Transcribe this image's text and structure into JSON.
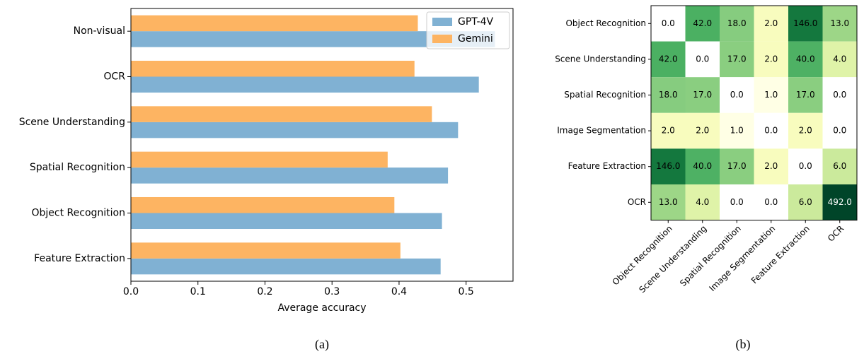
{
  "chart_data": [
    {
      "type": "barh",
      "categories": [
        "Non-visual",
        "OCR",
        "Scene Understanding",
        "Spatial Recognition",
        "Object Recognition",
        "Feature Extraction"
      ],
      "series": [
        {
          "name": "GPT-4V",
          "color": "#80b1d3",
          "values": [
            0.543,
            0.519,
            0.488,
            0.473,
            0.464,
            0.462
          ]
        },
        {
          "name": "Gemini",
          "color": "#fdb462",
          "values": [
            0.428,
            0.423,
            0.449,
            0.383,
            0.393,
            0.402
          ]
        }
      ],
      "x_label": "Average accuracy",
      "xlim": [
        0,
        0.57
      ],
      "xticks": [
        {
          "value": 0,
          "label": "0.0"
        },
        0.1,
        0.2,
        0.3,
        0.4,
        0.5
      ],
      "legend": "upper right",
      "caption": "(a)"
    },
    {
      "type": "heatmap",
      "y_categories": [
        "Object Recognition",
        "Scene Understanding",
        "Spatial Recognition",
        "Image Segmentation",
        "Feature Extraction",
        "OCR"
      ],
      "x_categories": [
        "Object Recognition",
        "Scene Understanding",
        "Spatial Recognition",
        "Image Segmentation",
        "Feature Extraction",
        "OCR"
      ],
      "values": [
        [
          0,
          42,
          18,
          2,
          146,
          13
        ],
        [
          42,
          0,
          17,
          2,
          40,
          4
        ],
        [
          18,
          17,
          0,
          1,
          17,
          0
        ],
        [
          2,
          2,
          1,
          0,
          2,
          0
        ],
        [
          146,
          40,
          17,
          2,
          0,
          6
        ],
        [
          13,
          4,
          0,
          0,
          6,
          492
        ]
      ],
      "value_labels": [
        [
          "0.0",
          "42.0",
          "18.0",
          "2.0",
          "146.0",
          "13.0"
        ],
        [
          "42.0",
          "0.0",
          "17.0",
          "2.0",
          "40.0",
          "4.0"
        ],
        [
          "18.0",
          "17.0",
          "0.0",
          "1.0",
          "17.0",
          "0.0"
        ],
        [
          "2.0",
          "2.0",
          "1.0",
          "0.0",
          "2.0",
          "0.0"
        ],
        [
          "146.0",
          "40.0",
          "17.0",
          "2.0",
          "0.0",
          "6.0"
        ],
        [
          "13.0",
          "4.0",
          "0.0",
          "0.0",
          "6.0",
          "492.0"
        ]
      ],
      "colormap": [
        "#ffffe5",
        "#f7fcb9",
        "#d9f0a3",
        "#addd8e",
        "#78c679",
        "#41ab5d",
        "#238443",
        "#006837",
        "#004529"
      ],
      "log_scale": true,
      "clim": [
        1,
        492
      ],
      "zero_color": "#ffffff",
      "caption": "(b)"
    }
  ]
}
